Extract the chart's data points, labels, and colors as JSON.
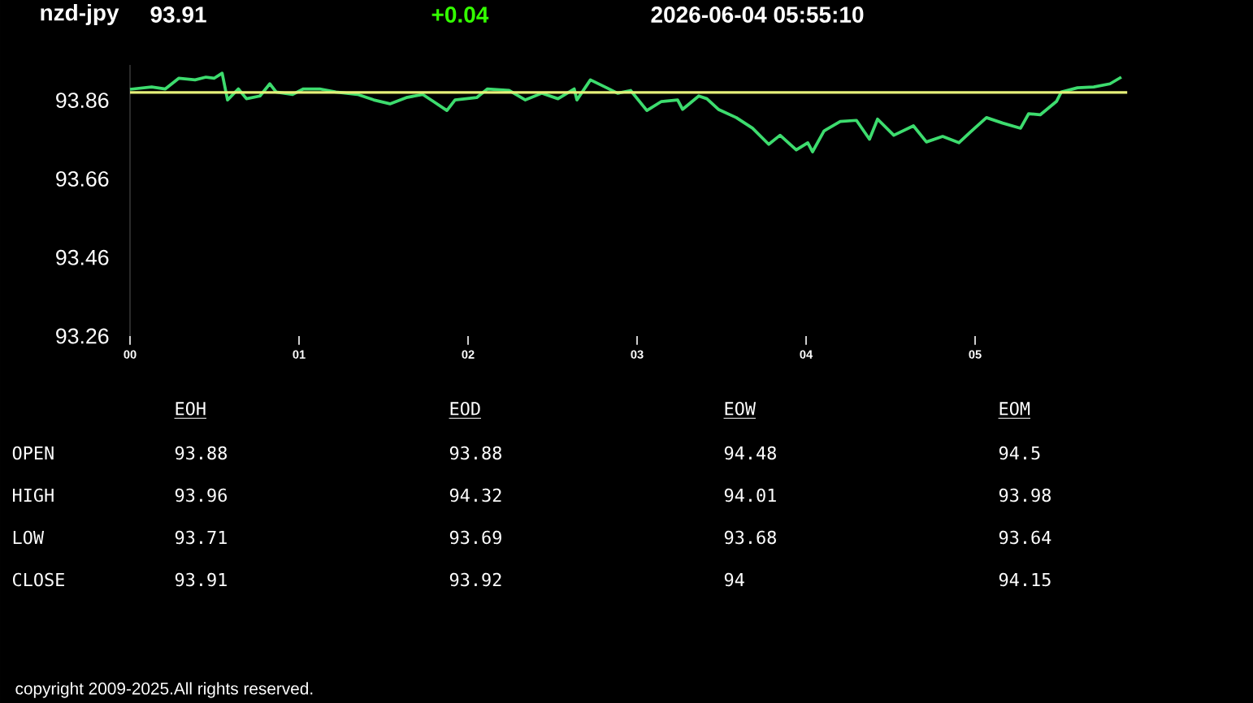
{
  "chart_data": {
    "type": "line",
    "title": "nzd-jpy",
    "x": [
      0,
      0.128,
      0.209,
      0.288,
      0.385,
      0.449,
      0.497,
      0.545,
      0.577,
      0.641,
      0.689,
      0.769,
      0.827,
      0.865,
      0.962,
      1.026,
      1.122,
      1.218,
      1.346,
      1.442,
      1.538,
      1.635,
      1.731,
      1.795,
      1.875,
      1.923,
      2.051,
      2.115,
      2.243,
      2.339,
      2.436,
      2.532,
      2.628,
      2.644,
      2.724,
      2.82,
      2.885,
      2.962,
      3.058,
      3.144,
      3.24,
      3.269,
      3.365,
      3.413,
      3.481,
      3.587,
      3.683,
      3.779,
      3.846,
      3.942,
      4.01,
      4.038,
      4.106,
      4.202,
      4.298,
      4.375,
      4.423,
      4.519,
      4.635,
      4.712,
      4.808,
      4.904,
      4.971,
      5.067,
      5.163,
      5.269,
      5.317,
      5.385,
      5.481,
      5.51,
      5.606,
      5.702,
      5.798,
      5.865
    ],
    "series": [
      {
        "color": "#3ddc6e",
        "values": [
          93.888,
          93.894,
          93.889,
          93.916,
          93.912,
          93.919,
          93.916,
          93.929,
          93.861,
          93.889,
          93.864,
          93.871,
          93.902,
          93.881,
          93.875,
          93.889,
          93.889,
          93.881,
          93.875,
          93.861,
          93.851,
          93.867,
          93.875,
          93.857,
          93.834,
          93.861,
          93.867,
          93.889,
          93.885,
          93.861,
          93.878,
          93.864,
          93.889,
          93.861,
          93.912,
          93.892,
          93.878,
          93.885,
          93.834,
          93.857,
          93.861,
          93.837,
          93.871,
          93.864,
          93.837,
          93.816,
          93.789,
          93.748,
          93.771,
          93.734,
          93.752,
          93.729,
          93.782,
          93.806,
          93.809,
          93.761,
          93.812,
          93.771,
          93.795,
          93.754,
          93.768,
          93.752,
          93.779,
          93.816,
          93.802,
          93.789,
          93.826,
          93.823,
          93.857,
          93.881,
          93.892,
          93.894,
          93.902,
          93.919
        ]
      }
    ],
    "xlim": [
      0,
      5.9
    ],
    "xticks": [
      {
        "value": 0,
        "label": "00"
      },
      {
        "value": 1,
        "label": "01"
      },
      {
        "value": 2,
        "label": "02"
      },
      {
        "value": 3,
        "label": "03"
      },
      {
        "value": 4,
        "label": "04"
      },
      {
        "value": 5,
        "label": "05"
      }
    ],
    "ylim": [
      93.26,
      93.95
    ],
    "yticks": [
      93.26,
      93.46,
      93.66,
      93.86
    ],
    "ref_lines": [
      {
        "axis": "y",
        "value": 93.88,
        "color": "#e6f07a"
      }
    ],
    "annotations": [
      "93.91",
      "+0.04",
      "2026-06-04   05:55:10",
      "EOH",
      "EOD",
      "EOW",
      "EOM",
      "OPEN",
      "93.88",
      "93.88",
      "94.48",
      "94.5",
      "HIGH",
      "93.96",
      "94.32",
      "94.01",
      "93.98",
      "LOW",
      "93.71",
      "93.69",
      "93.68",
      "93.64",
      "CLOSE",
      "93.91",
      "93.92",
      "94",
      "94.15",
      "copyright 2009-2025.All rights reserved."
    ]
  }
}
